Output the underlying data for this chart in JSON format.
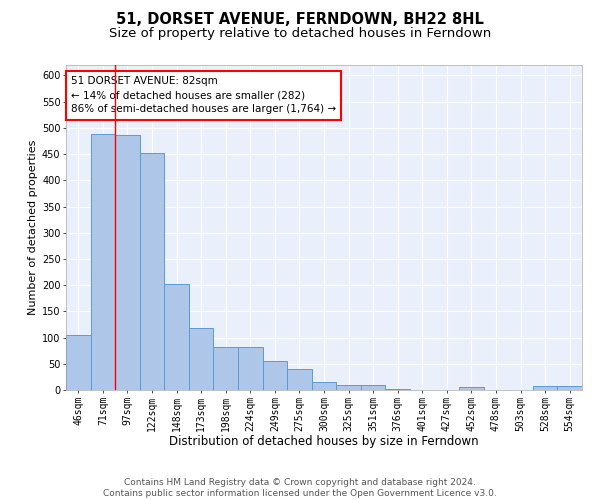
{
  "title": "51, DORSET AVENUE, FERNDOWN, BH22 8HL",
  "subtitle": "Size of property relative to detached houses in Ferndown",
  "xlabel": "Distribution of detached houses by size in Ferndown",
  "ylabel": "Number of detached properties",
  "categories": [
    "46sqm",
    "71sqm",
    "97sqm",
    "122sqm",
    "148sqm",
    "173sqm",
    "198sqm",
    "224sqm",
    "249sqm",
    "275sqm",
    "300sqm",
    "325sqm",
    "351sqm",
    "376sqm",
    "401sqm",
    "427sqm",
    "452sqm",
    "478sqm",
    "503sqm",
    "528sqm",
    "554sqm"
  ],
  "values": [
    105,
    488,
    487,
    453,
    202,
    119,
    82,
    82,
    56,
    40,
    15,
    10,
    10,
    2,
    0,
    0,
    5,
    0,
    0,
    7,
    7
  ],
  "bar_color": "#aec6e8",
  "bar_edge_color": "#5b9bd5",
  "annotation_box_text": "51 DORSET AVENUE: 82sqm\n← 14% of detached houses are smaller (282)\n86% of semi-detached houses are larger (1,764) →",
  "annotation_box_color": "white",
  "annotation_box_edge_color": "red",
  "vline_x": 1.5,
  "ylim": [
    0,
    620
  ],
  "yticks": [
    0,
    50,
    100,
    150,
    200,
    250,
    300,
    350,
    400,
    450,
    500,
    550,
    600
  ],
  "footer": "Contains HM Land Registry data © Crown copyright and database right 2024.\nContains public sector information licensed under the Open Government Licence v3.0.",
  "background_color": "#eaf0fb",
  "title_fontsize": 10.5,
  "subtitle_fontsize": 9.5,
  "xlabel_fontsize": 8.5,
  "ylabel_fontsize": 8,
  "tick_fontsize": 7,
  "footer_fontsize": 6.5,
  "annot_fontsize": 7.5
}
